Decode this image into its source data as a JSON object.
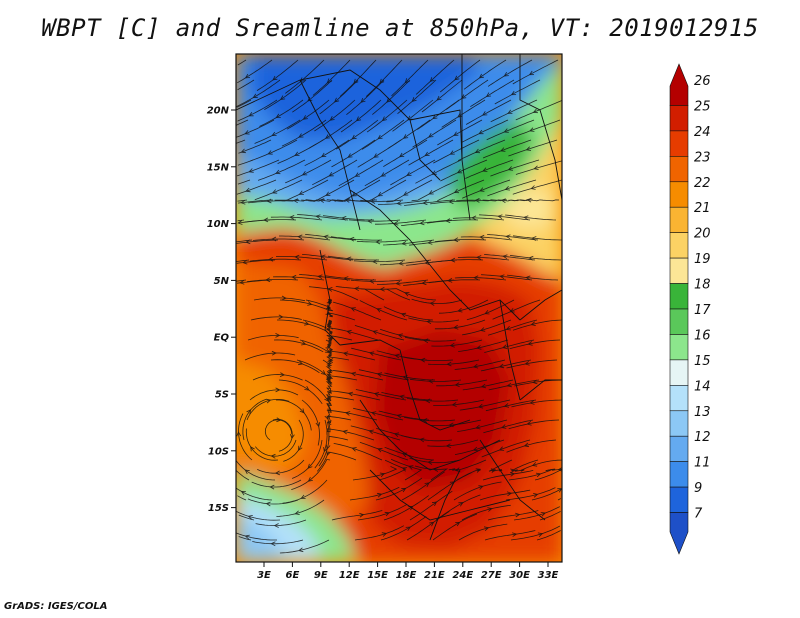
{
  "title": "WBPT [C] and Sreamline at 850hPa, VT: 2019012915",
  "footer": "GrADS: IGES/COLA",
  "map": {
    "lat_ticks": [
      "20N",
      "15N",
      "10N",
      "5N",
      "EQ",
      "5S",
      "10S",
      "15S"
    ],
    "lon_ticks": [
      "3E",
      "6E",
      "9E",
      "12E",
      "15E",
      "18E",
      "21E",
      "24E",
      "27E",
      "30E",
      "33E"
    ]
  },
  "colorbar": {
    "labels": [
      "26",
      "25",
      "24",
      "23",
      "22",
      "21",
      "20",
      "19",
      "18",
      "17",
      "16",
      "15",
      "14",
      "13",
      "12",
      "11",
      "9",
      "7"
    ],
    "colors": [
      "#b40000",
      "#d21e00",
      "#e63c00",
      "#f06400",
      "#f68c00",
      "#fab432",
      "#fcd264",
      "#fce696",
      "#39b439",
      "#5ac85a",
      "#8ce68c",
      "#e6f5f5",
      "#b4e1fa",
      "#8cc8f5",
      "#64aaf0",
      "#3c8ceb",
      "#1e64dc",
      "#1e50c8"
    ]
  }
}
